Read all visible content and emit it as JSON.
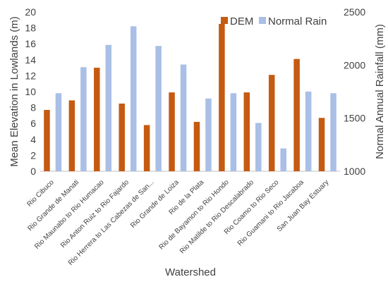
{
  "chart_data": {
    "type": "bar",
    "title": "",
    "xlabel": "Watershed",
    "ylabel": "Mean Elevation in Lowlands (m)",
    "y2label": "Normal Annual Rainfall (mm)",
    "ylim": [
      0,
      20
    ],
    "y2lim": [
      1000,
      2500
    ],
    "yticks": [
      "0",
      "2",
      "4",
      "6",
      "8",
      "10",
      "12",
      "14",
      "16",
      "18",
      "20"
    ],
    "y2ticks": [
      "1000",
      "1500",
      "2000",
      "2500"
    ],
    "grid": false,
    "legend_position": "top-right",
    "categories": [
      "Rio Cibuco",
      "Rio Grande de Manati",
      "Rio Maunabo to Rio Humacao",
      "Rio Anton Ruiz to Rio Fajardo",
      "Rio Herrera to Las Cabezas de San...",
      "Rio Grande de Loiza",
      "Rio de la Plata",
      "Rio de Bayamon to Rio Hondo",
      "Rio Matilde to Rio Descalabrado",
      "Rio Coamo to Rio Seco",
      "Rio Guamani to Rio Jacaboa",
      "San Juan Bay Estuary"
    ],
    "series": [
      {
        "name": "DEM",
        "axis": "left",
        "color": "#c55a11",
        "values": [
          7.7,
          8.9,
          13.0,
          8.5,
          5.8,
          9.9,
          6.2,
          18.5,
          9.9,
          12.1,
          14.1,
          6.7
        ]
      },
      {
        "name": "Normal Rain",
        "axis": "right",
        "color": "#a9bfe6",
        "values": [
          1735,
          1980,
          2190,
          2365,
          2180,
          2005,
          1685,
          1735,
          1455,
          1215,
          1750,
          1735
        ]
      }
    ]
  }
}
